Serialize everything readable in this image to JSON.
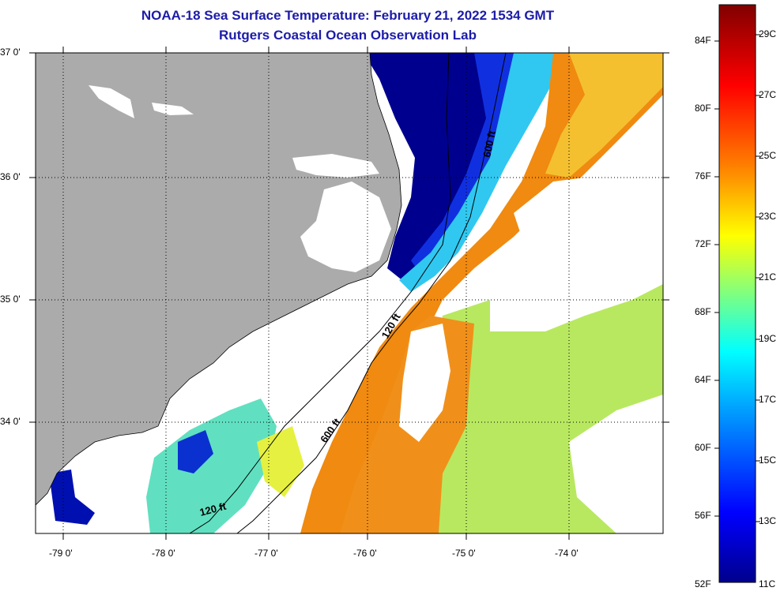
{
  "title": {
    "line1": "NOAA-18 Sea Surface Temperature:  February 21, 2022 1534 GMT",
    "line2": "Rutgers Coastal Ocean Observation Lab"
  },
  "map": {
    "longitude_labels": [
      "-79 0'",
      "-78 0'",
      "-77 0'",
      "-76 0'",
      "-75 0'",
      "-74 0'"
    ],
    "latitude_labels": [
      "37 0'",
      "36 0'",
      "35 0'",
      "34 0'"
    ],
    "contour_labels": [
      "600 ft",
      "120 ft",
      "600 ft",
      "120 ft"
    ],
    "colors": {
      "land": "#ababab",
      "cloud": "#ffffff",
      "graticule": "#000000"
    }
  },
  "colorbar": {
    "fahrenheit_labels": [
      "84F",
      "80F",
      "76F",
      "72F",
      "68F",
      "64F",
      "60F",
      "56F",
      "52F"
    ],
    "celsius_labels": [
      "29C",
      "27C",
      "25C",
      "23C",
      "21C",
      "19C",
      "17C",
      "15C",
      "13C",
      "11C"
    ],
    "range_celsius": [
      11,
      30
    ],
    "colors": [
      "#00008c",
      "#0000ff",
      "#00a0ff",
      "#00ffff",
      "#80ff80",
      "#ffff00",
      "#ff8000",
      "#ff0000",
      "#800000"
    ]
  }
}
